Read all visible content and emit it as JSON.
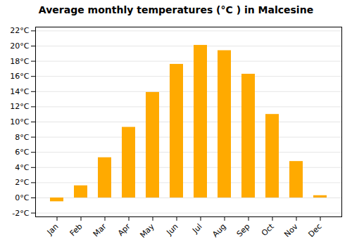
{
  "chart_data": {
    "type": "bar",
    "title": "Average monthly temperatures (°C ) in Malcesine",
    "categories": [
      "Jan",
      "Feb",
      "Mar",
      "Apr",
      "May",
      "Jun",
      "Jul",
      "Aug",
      "Sep",
      "Oct",
      "Nov",
      "Dec"
    ],
    "values": [
      -0.5,
      1.6,
      5.3,
      9.3,
      13.9,
      17.6,
      20.1,
      19.4,
      16.3,
      11.0,
      4.8,
      0.3
    ],
    "color": "#FFAA00",
    "ylim": [
      -2.5,
      22.5
    ],
    "yticks": [
      {
        "value": -2,
        "label": "-2°C"
      },
      {
        "value": 0,
        "label": "0°C"
      },
      {
        "value": 2,
        "label": "2°C"
      },
      {
        "value": 4,
        "label": "4°C"
      },
      {
        "value": 6,
        "label": "6°C"
      },
      {
        "value": 8,
        "label": "8°C"
      },
      {
        "value": 10,
        "label": "10°C"
      },
      {
        "value": 12,
        "label": "12°C"
      },
      {
        "value": 14,
        "label": "14°C"
      },
      {
        "value": 16,
        "label": "16°C"
      },
      {
        "value": 18,
        "label": "18°C"
      },
      {
        "value": 20,
        "label": "20°C"
      },
      {
        "value": 22,
        "label": "22°C"
      }
    ],
    "grid": true
  }
}
